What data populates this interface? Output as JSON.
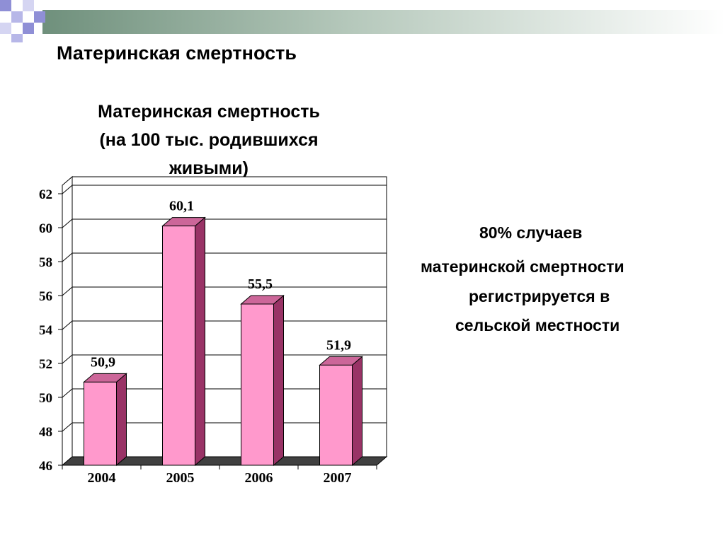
{
  "slide": {
    "title": "Материнская смертность",
    "side_text": [
      "80% случаев",
      "материнской смертности",
      "регистрируется в",
      "сельской местности"
    ]
  },
  "colors": {
    "bar_front": "#FF99CC",
    "bar_side": "#993366",
    "bar_top": "#CC6699",
    "floor": "#404040",
    "decor_green": "#7a9a86",
    "decor_blue": "#8f8fd6"
  },
  "chart_data": {
    "type": "bar",
    "title": "Материнская смертность\n(на 100 тыс. родившихся\nживыми)",
    "categories": [
      "2004",
      "2005",
      "2006",
      "2007"
    ],
    "values": [
      50.9,
      60.1,
      55.5,
      51.9
    ],
    "value_labels": [
      "50,9",
      "60,1",
      "55,5",
      "51,9"
    ],
    "y_ticks": [
      "46",
      "48",
      "50",
      "52",
      "54",
      "56",
      "58",
      "60",
      "62"
    ],
    "ylim": [
      46,
      62
    ],
    "grid": true,
    "style": "3d"
  }
}
